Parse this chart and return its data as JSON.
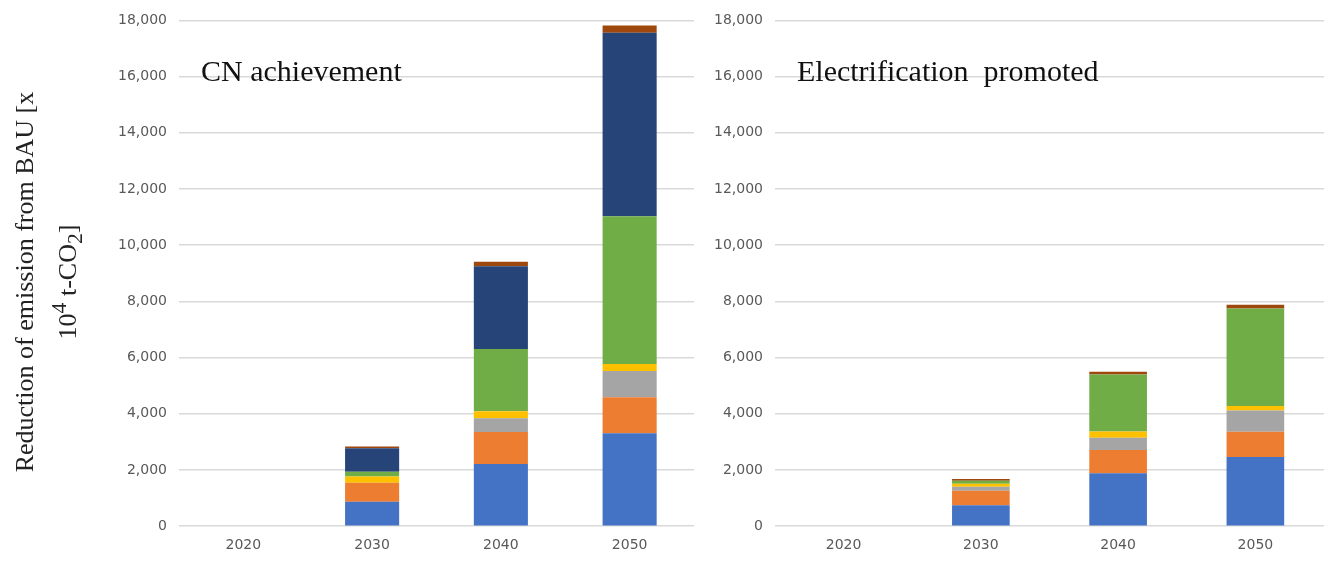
{
  "chart_data": [
    {
      "type": "bar",
      "title": "CN achievement",
      "ylabel": "Reduction of emission from BAU [x 10$^{4}$ t-CO$_{2}$]",
      "categories": [
        "2020",
        "2030",
        "2040",
        "2050"
      ],
      "stacked": true,
      "ylim": [
        0,
        18000
      ],
      "yticks": [
        0,
        {
          "value": 2000,
          "label": "2,000"
        },
        {
          "value": 4000,
          "label": "4,000"
        },
        {
          "value": 6000,
          "label": "6,000"
        },
        {
          "value": 8000,
          "label": "8,000"
        },
        {
          "value": 10000,
          "label": "10,000"
        },
        {
          "value": 12000,
          "label": "12,000"
        },
        {
          "value": 14000,
          "label": "14,000"
        },
        {
          "value": 16000,
          "label": "16,000"
        },
        {
          "value": 18000,
          "label": "18,000"
        }
      ],
      "grid": "y",
      "series": [
        {
          "color": "#4472c4",
          "values": [
            0,
            870,
            2210,
            3310
          ]
        },
        {
          "color": "#ed7d31",
          "values": [
            0,
            680,
            1140,
            1280
          ]
        },
        {
          "color": "#a5a5a5",
          "values": [
            0,
            0,
            490,
            930
          ]
        },
        {
          "color": "#ffc000",
          "values": [
            0,
            220,
            250,
            250
          ]
        },
        {
          "color": "#70ad47",
          "values": [
            0,
            170,
            2220,
            5260
          ]
        },
        {
          "color": "#264478",
          "values": [
            0,
            830,
            2940,
            6530
          ]
        },
        {
          "color": "#9e480e",
          "values": [
            0,
            70,
            160,
            260
          ]
        }
      ]
    },
    {
      "type": "bar",
      "title": "Electrification  promoted",
      "categories": [
        "2020",
        "2030",
        "2040",
        "2050"
      ],
      "stacked": true,
      "ylim": [
        0,
        18000
      ],
      "yticks": [
        0,
        {
          "value": 2000,
          "label": "2,000"
        },
        {
          "value": 4000,
          "label": "4,000"
        },
        {
          "value": 6000,
          "label": "6,000"
        },
        {
          "value": 8000,
          "label": "8,000"
        },
        {
          "value": 10000,
          "label": "10,000"
        },
        {
          "value": 12000,
          "label": "12,000"
        },
        {
          "value": 14000,
          "label": "14,000"
        },
        {
          "value": 16000,
          "label": "16,000"
        },
        {
          "value": 18000,
          "label": "18,000"
        }
      ],
      "grid": "y",
      "series": [
        {
          "color": "#4472c4",
          "values": [
            0,
            750,
            1880,
            2460
          ]
        },
        {
          "color": "#ed7d31",
          "values": [
            0,
            510,
            830,
            900
          ]
        },
        {
          "color": "#a5a5a5",
          "values": [
            0,
            140,
            440,
            760
          ]
        },
        {
          "color": "#ffc000",
          "values": [
            0,
            110,
            220,
            160
          ]
        },
        {
          "color": "#70ad47",
          "values": [
            0,
            110,
            2030,
            3470
          ]
        },
        {
          "color": "#264478",
          "values": [
            0,
            0,
            0,
            0
          ]
        },
        {
          "color": "#9e480e",
          "values": [
            0,
            60,
            100,
            130
          ]
        }
      ]
    }
  ]
}
